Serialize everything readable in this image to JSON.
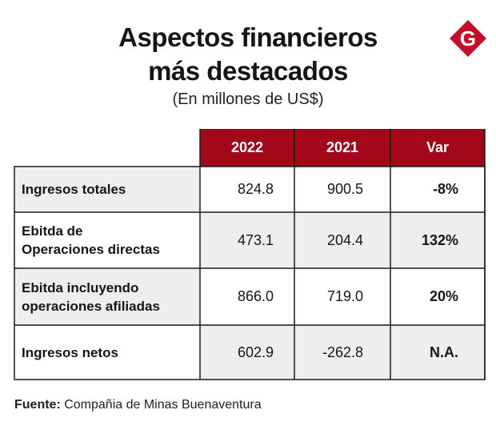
{
  "title_line1": "Aspectos financieros",
  "title_line2": "más destacados",
  "subtitle": "(En millones de US$)",
  "logo_letter": "G",
  "colors": {
    "header": "#a3081a",
    "logo": "#c0102a",
    "cell_gray": "#eeeeee"
  },
  "chart_data": {
    "type": "table",
    "columns": [
      "2022",
      "2021",
      "Var"
    ],
    "rows": [
      {
        "label": "Ingresos totales",
        "values": [
          "824.8",
          "900.5",
          "-8%"
        ]
      },
      {
        "label_lines": [
          "Ebitda de",
          "Operaciones directas"
        ],
        "values": [
          "473.1",
          "204.4",
          "132%"
        ]
      },
      {
        "label_lines": [
          "Ebitda incluyendo",
          "operaciones afiliadas"
        ],
        "values": [
          "866.0",
          "719.0",
          "20%"
        ]
      },
      {
        "label": "Ingresos netos",
        "values": [
          "602.9",
          "-262.8",
          "N.A."
        ]
      }
    ]
  },
  "source_label": "Fuente:",
  "source_text": " Compañia de Minas Buenaventura"
}
